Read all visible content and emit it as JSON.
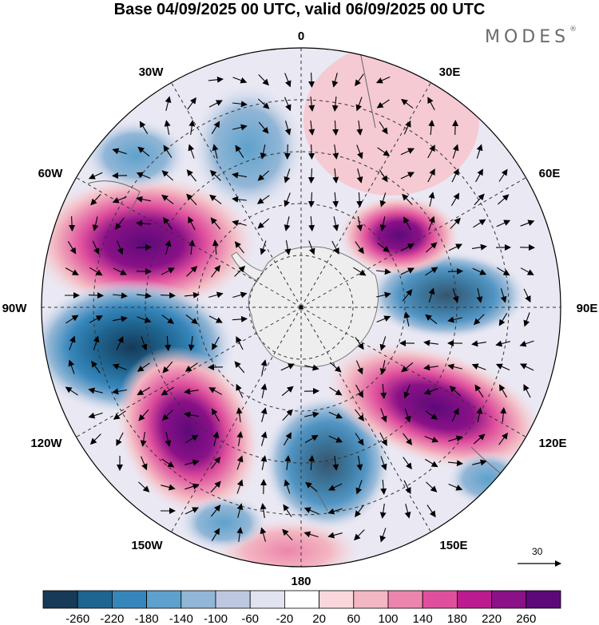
{
  "title": "Base 04/09/2025 00 UTC, valid 06/09/2025 00 UTC",
  "brand": {
    "name": "MODES",
    "mark": "®"
  },
  "map": {
    "projection": "south polar stereographic",
    "longitude_labels": [
      "0",
      "30E",
      "60E",
      "90E",
      "120E",
      "150E",
      "180",
      "150W",
      "120W",
      "90W",
      "60W",
      "30W"
    ],
    "reference_vector_value": "30"
  },
  "colorbar": {
    "tick_labels": [
      "-260",
      "-220",
      "-180",
      "-140",
      "-100",
      "-60",
      "-20",
      "20",
      "60",
      "100",
      "140",
      "180",
      "220",
      "260"
    ],
    "colors": [
      "#163a57",
      "#1f6591",
      "#3786bb",
      "#5ea1cc",
      "#92b6d6",
      "#bdc8e0",
      "#e2e3f0",
      "#ffffff",
      "#f9d7db",
      "#f3b7c1",
      "#ec85ad",
      "#df4f9c",
      "#bb1b8f",
      "#8a1187",
      "#5d0a79"
    ]
  }
}
